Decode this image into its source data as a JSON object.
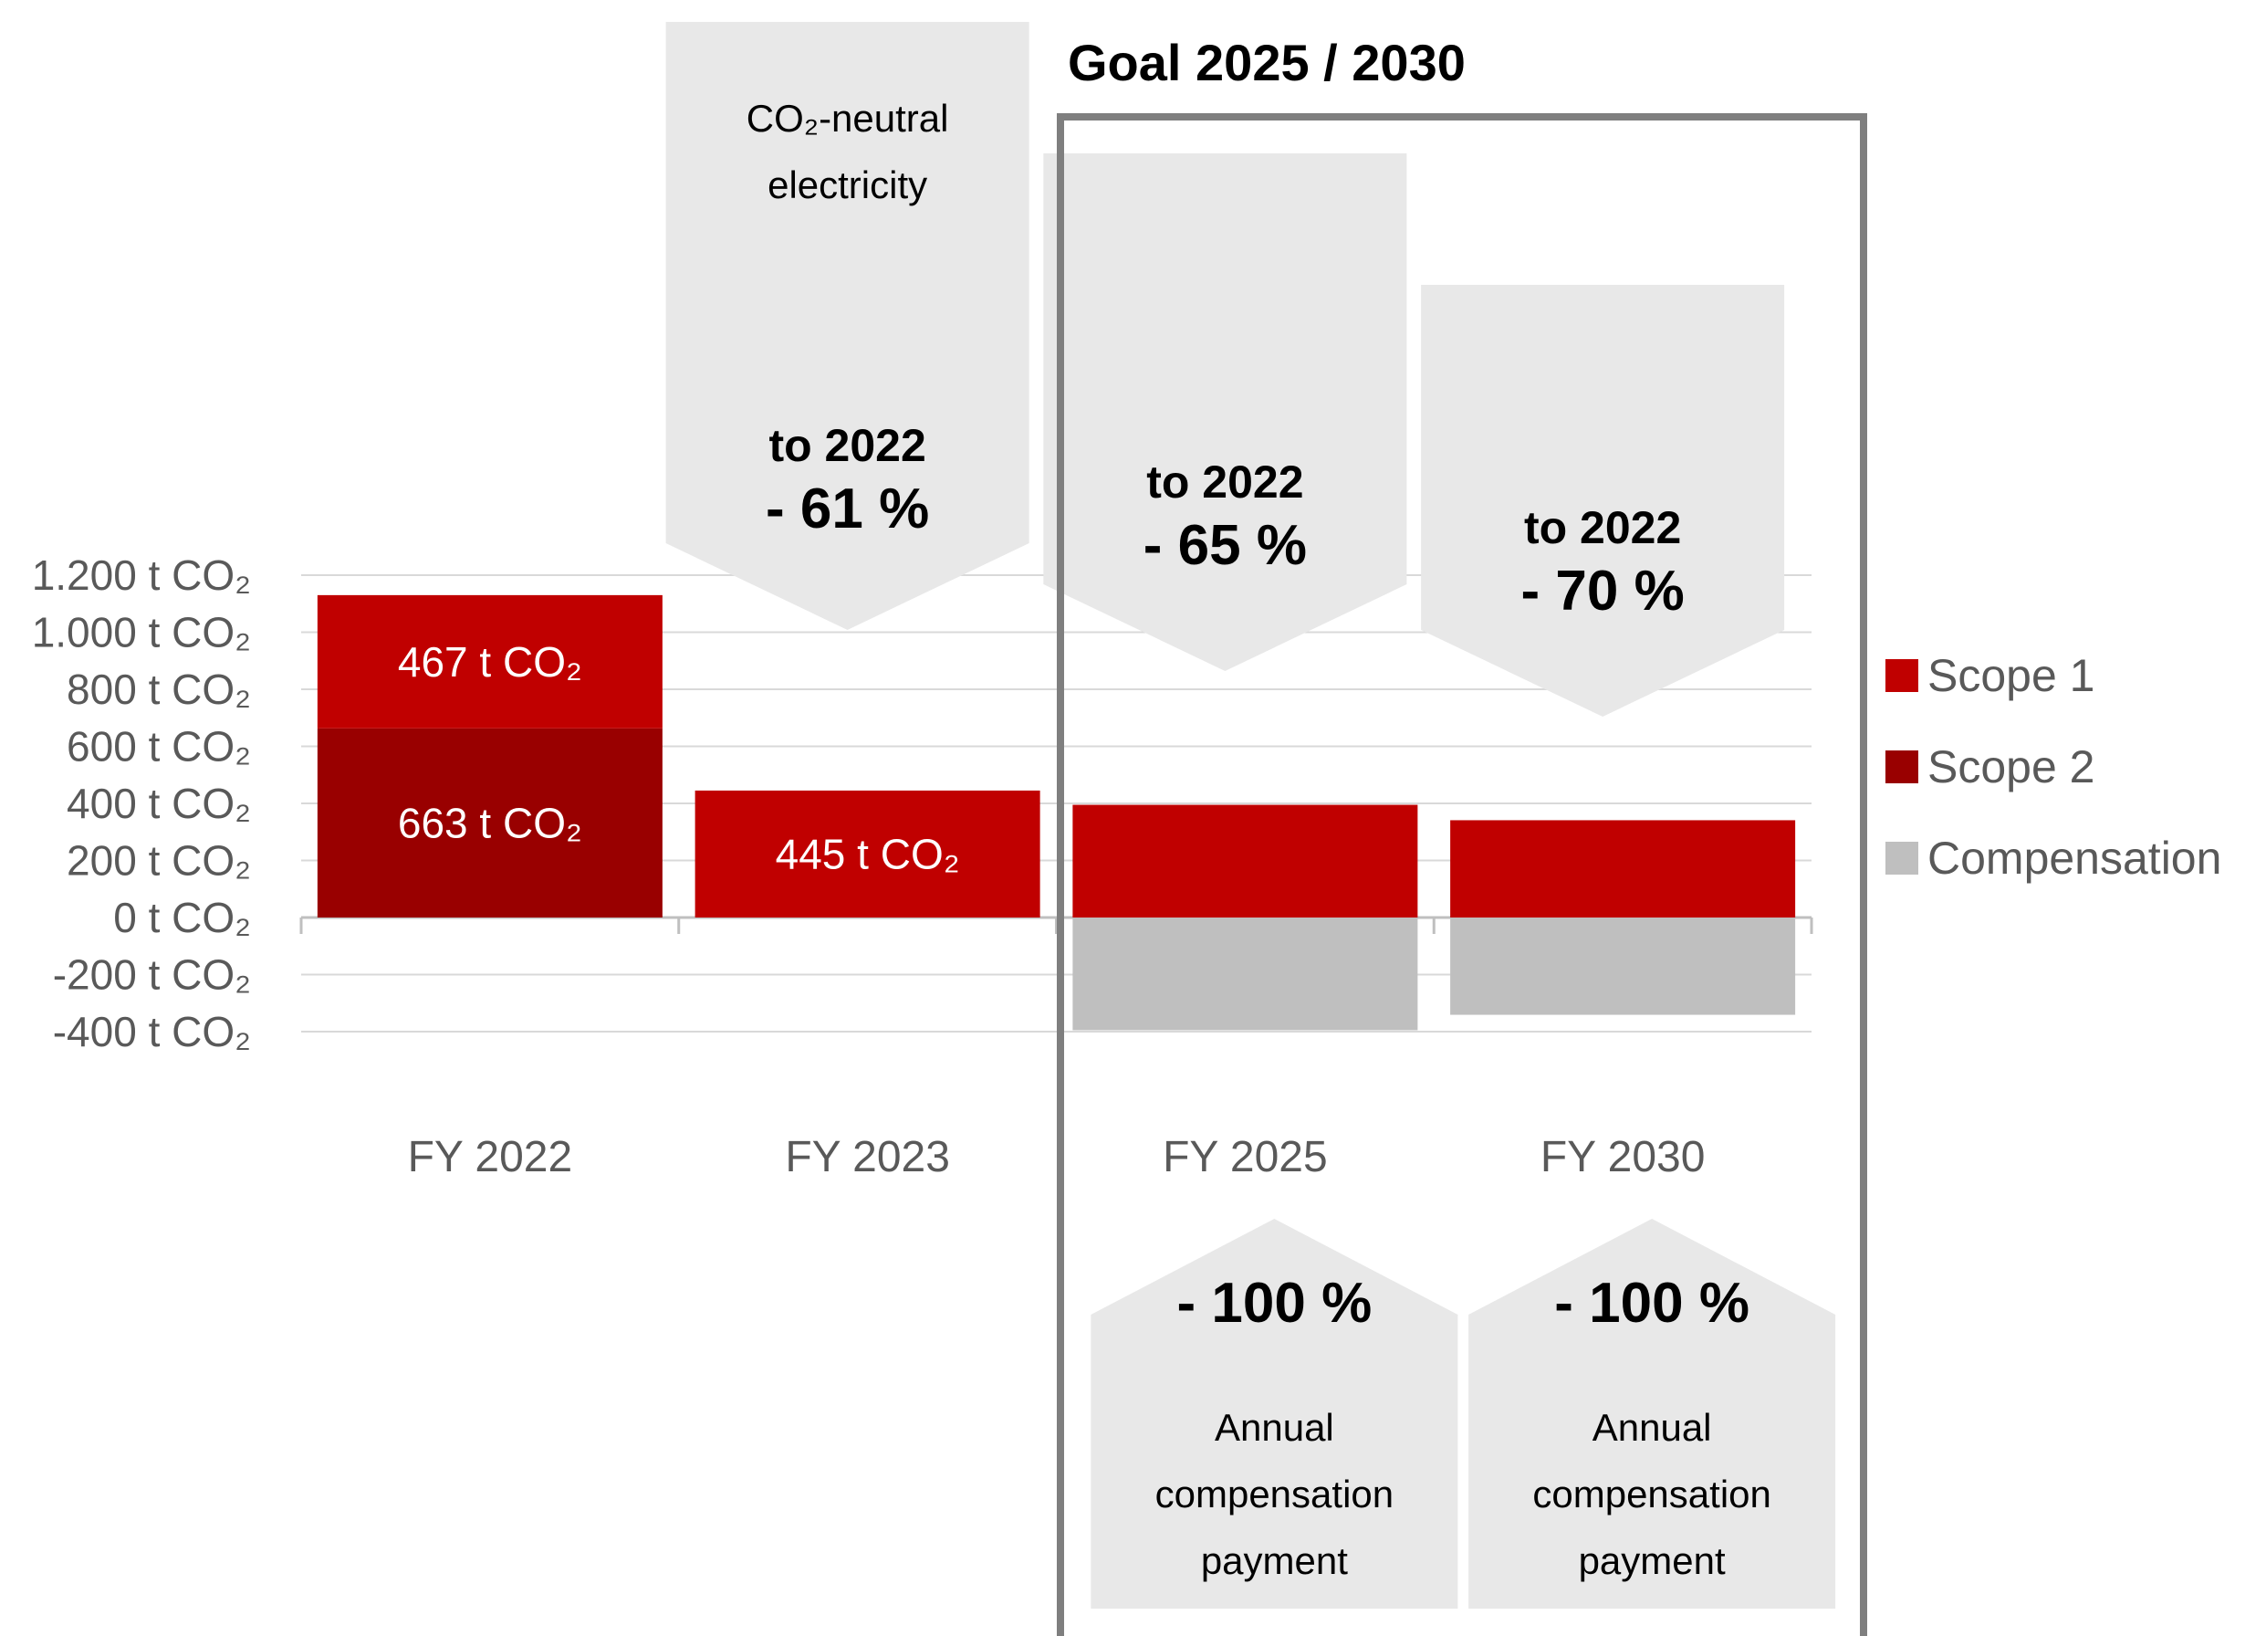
{
  "chart_data": {
    "type": "bar",
    "stacked": true,
    "categories": [
      "FY 2022",
      "FY 2023",
      "FY 2025",
      "FY 2030"
    ],
    "series": [
      {
        "name": "Scope 2",
        "color": "#990000",
        "values": [
          663,
          0,
          0,
          0
        ]
      },
      {
        "name": "Scope 1",
        "color": "#c00000",
        "values": [
          467,
          445,
          395,
          341
        ]
      },
      {
        "name": "Compensation",
        "color": "#bfbfbf",
        "values": [
          0,
          0,
          -395,
          -341
        ]
      }
    ],
    "data_labels": [
      {
        "category": "FY 2022",
        "series": "Scope 1",
        "text": "467 t CO₂"
      },
      {
        "category": "FY 2022",
        "series": "Scope 2",
        "text": "663 t CO₂"
      },
      {
        "category": "FY 2023",
        "series": "Scope 1",
        "text": "445 t CO₂"
      }
    ],
    "ylim": [
      -400,
      1200
    ],
    "yticks": [
      1200,
      1000,
      800,
      600,
      400,
      200,
      0,
      -200,
      -400
    ],
    "ytick_labels": [
      "1.200 t CO₂",
      "1.000 t CO₂",
      "800 t CO₂",
      "600 t CO₂",
      "400 t CO₂",
      "200 t CO₂",
      "0 t CO₂",
      "-200 t CO₂",
      "-400 t CO₂"
    ],
    "grid": true,
    "legend": {
      "position": "right",
      "entries": [
        {
          "label": "Scope 1",
          "color": "#c00000"
        },
        {
          "label": "Scope 2",
          "color": "#990000"
        },
        {
          "label": "Compensation",
          "color": "#bfbfbf"
        }
      ]
    },
    "annotations": {
      "goal_title": "Goal 2025 / 2030",
      "down_arrows": [
        {
          "category": "FY 2023",
          "lines": [
            "CO₂-neutral",
            "electricity"
          ],
          "ref": "to 2022",
          "value": "- 61 %"
        },
        {
          "category": "FY 2025",
          "lines": [],
          "ref": "to 2022",
          "value": "- 65 %"
        },
        {
          "category": "FY 2030",
          "lines": [],
          "ref": "to 2022",
          "value": "- 70 %"
        }
      ],
      "up_arrows": [
        {
          "category": "FY 2025",
          "value": "- 100 %",
          "lines": [
            "Annual",
            "compensation",
            "payment"
          ]
        },
        {
          "category": "FY 2030",
          "value": "- 100 %",
          "lines": [
            "Annual",
            "compensation",
            "payment"
          ]
        }
      ]
    }
  }
}
